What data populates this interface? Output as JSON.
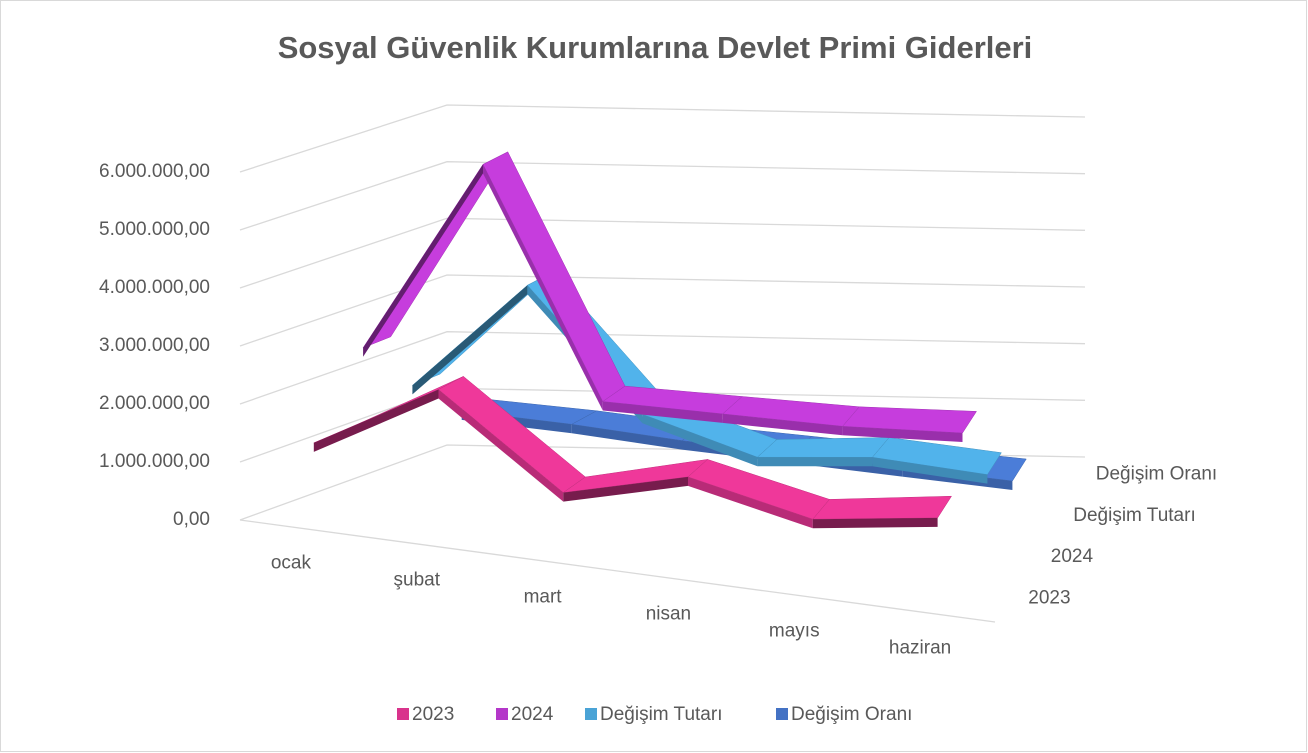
{
  "chart_data": {
    "type": "line3d",
    "title": "Sosyal Güvenlik Kurumlarına Devlet Primi Giderleri",
    "categories": [
      "ocak",
      "şubat",
      "mart",
      "nisan",
      "mayıs",
      "haziran"
    ],
    "series": [
      {
        "name": "2023",
        "color": "#d9338c",
        "values": [
          1400000,
          2600000,
          1100000,
          1650000,
          1200000,
          1500000
        ]
      },
      {
        "name": "2024",
        "color": "#b437c9",
        "values": [
          2700000,
          6100000,
          2200000,
          2200000,
          2200000,
          2300000
        ]
      },
      {
        "name": "Değişim Tutarı",
        "color": "#4aa3d6",
        "values": [
          1700000,
          3600000,
          1500000,
          900000,
          1050000,
          900000
        ]
      },
      {
        "name": "Değişim Oranı",
        "color": "#4472c4",
        "values": [
          900000,
          750000,
          550000,
          400000,
          250000,
          100000
        ]
      }
    ],
    "ylim": [
      0,
      6000000
    ],
    "yticks": [
      {
        "value": 0,
        "label": "0,00"
      },
      {
        "value": 1000000,
        "label": "1.000.000,00"
      },
      {
        "value": 2000000,
        "label": "2.000.000,00"
      },
      {
        "value": 3000000,
        "label": "3.000.000,00"
      },
      {
        "value": 4000000,
        "label": "4.000.000,00"
      },
      {
        "value": 5000000,
        "label": "5.000.000,00"
      },
      {
        "value": 6000000,
        "label": "6.000.000,00"
      }
    ],
    "grid": true,
    "legend": "bottom"
  }
}
